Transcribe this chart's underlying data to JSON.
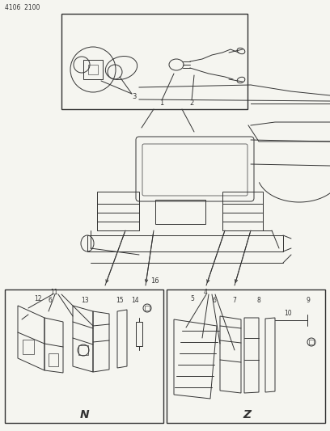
{
  "title": "4106  2100",
  "bg_color": "#f5f5f0",
  "line_color": "#333333",
  "fig_width": 4.08,
  "fig_height": 5.33,
  "dpi": 100
}
